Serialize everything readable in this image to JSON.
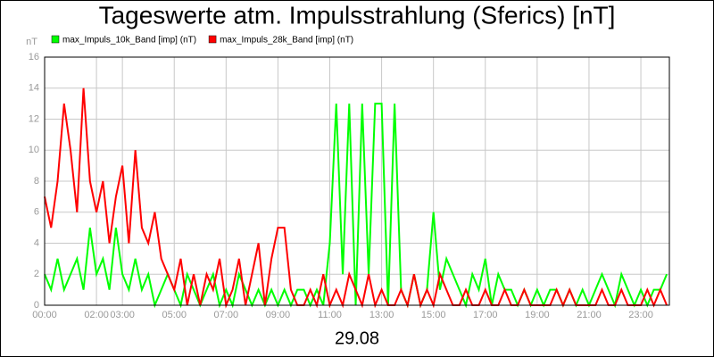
{
  "chart_data": {
    "type": "line",
    "title": "Tageswerte atm. Impulsstrahlung (Sferics) [nT]",
    "y_unit": "nT",
    "x_label": "29.08",
    "x": [
      0,
      0.25,
      0.5,
      0.75,
      1,
      1.25,
      1.5,
      1.75,
      2,
      2.25,
      2.5,
      2.75,
      3,
      3.25,
      3.5,
      3.75,
      4,
      4.25,
      4.5,
      4.75,
      5,
      5.25,
      5.5,
      5.75,
      6,
      6.25,
      6.5,
      6.75,
      7,
      7.25,
      7.5,
      7.75,
      8,
      8.25,
      8.5,
      8.75,
      9,
      9.25,
      9.5,
      9.75,
      10,
      10.25,
      10.5,
      10.75,
      11,
      11.25,
      11.5,
      11.75,
      12,
      12.25,
      12.5,
      12.75,
      13,
      13.25,
      13.5,
      13.75,
      14,
      14.25,
      14.5,
      14.75,
      15,
      15.25,
      15.5,
      15.75,
      16,
      16.25,
      16.5,
      16.75,
      17,
      17.25,
      17.5,
      17.75,
      18,
      18.25,
      18.5,
      18.75,
      19,
      19.25,
      19.5,
      19.75,
      20,
      20.25,
      20.5,
      20.75,
      21,
      21.25,
      21.5,
      21.75,
      22,
      22.25,
      22.5,
      22.75,
      23,
      23.25,
      23.5,
      23.75,
      24
    ],
    "series": [
      {
        "name": "max_Impuls_10k_Band [imp] (nT)",
        "color": "#00ff00",
        "values": [
          2,
          1,
          3,
          1,
          2,
          3,
          1,
          5,
          2,
          3,
          1,
          5,
          2,
          1,
          3,
          1,
          2,
          0,
          1,
          2,
          1,
          0,
          2,
          1,
          0,
          1,
          2,
          0,
          1,
          0,
          2,
          1,
          0,
          1,
          0,
          1,
          0,
          1,
          0,
          1,
          1,
          0,
          1,
          0,
          4,
          13,
          2,
          13,
          0,
          13,
          2,
          13,
          13,
          0,
          13,
          1,
          0,
          2,
          0,
          1,
          6,
          1,
          3,
          2,
          1,
          0,
          2,
          1,
          3,
          0,
          2,
          1,
          1,
          0,
          1,
          0,
          1,
          0,
          1,
          1,
          0,
          1,
          0,
          1,
          0,
          1,
          2,
          1,
          0,
          2,
          1,
          0,
          1,
          0,
          1,
          1,
          2
        ]
      },
      {
        "name": "max_Impuls_28k_Band [imp] (nT)",
        "color": "#ff0000",
        "values": [
          7,
          5,
          8,
          13,
          10,
          6,
          14,
          8,
          6,
          8,
          4,
          7,
          9,
          4,
          10,
          5,
          4,
          6,
          3,
          2,
          1,
          3,
          0,
          2,
          0,
          2,
          1,
          3,
          0,
          1,
          3,
          0,
          2,
          4,
          0,
          3,
          5,
          5,
          1,
          0,
          0,
          1,
          0,
          2,
          0,
          1,
          0,
          2,
          1,
          0,
          2,
          0,
          1,
          0,
          0,
          1,
          0,
          2,
          0,
          1,
          0,
          2,
          1,
          0,
          0,
          1,
          0,
          0,
          1,
          0,
          0,
          1,
          0,
          0,
          1,
          0,
          0,
          0,
          0,
          1,
          0,
          1,
          0,
          0,
          0,
          0,
          1,
          0,
          0,
          1,
          0,
          0,
          0,
          1,
          0,
          1,
          0
        ]
      }
    ],
    "xlim": [
      0,
      24.1
    ],
    "ylim": [
      0,
      16
    ],
    "xticks": [
      {
        "value": 0,
        "label": "00:00"
      },
      {
        "value": 2,
        "label": "02:00"
      },
      {
        "value": 3,
        "label": "03:00"
      },
      {
        "value": 5,
        "label": "05:00"
      },
      {
        "value": 7,
        "label": "07:00"
      },
      {
        "value": 9,
        "label": "09:00"
      },
      {
        "value": 11,
        "label": "11:00"
      },
      {
        "value": 13,
        "label": "13:00"
      },
      {
        "value": 15,
        "label": "15:00"
      },
      {
        "value": 17,
        "label": "17:00"
      },
      {
        "value": 19,
        "label": "19:00"
      },
      {
        "value": 21,
        "label": "21:00"
      },
      {
        "value": 23,
        "label": "23:00"
      }
    ],
    "yticks": [
      0,
      2,
      4,
      6,
      8,
      10,
      12,
      14,
      16
    ],
    "grid": true
  }
}
